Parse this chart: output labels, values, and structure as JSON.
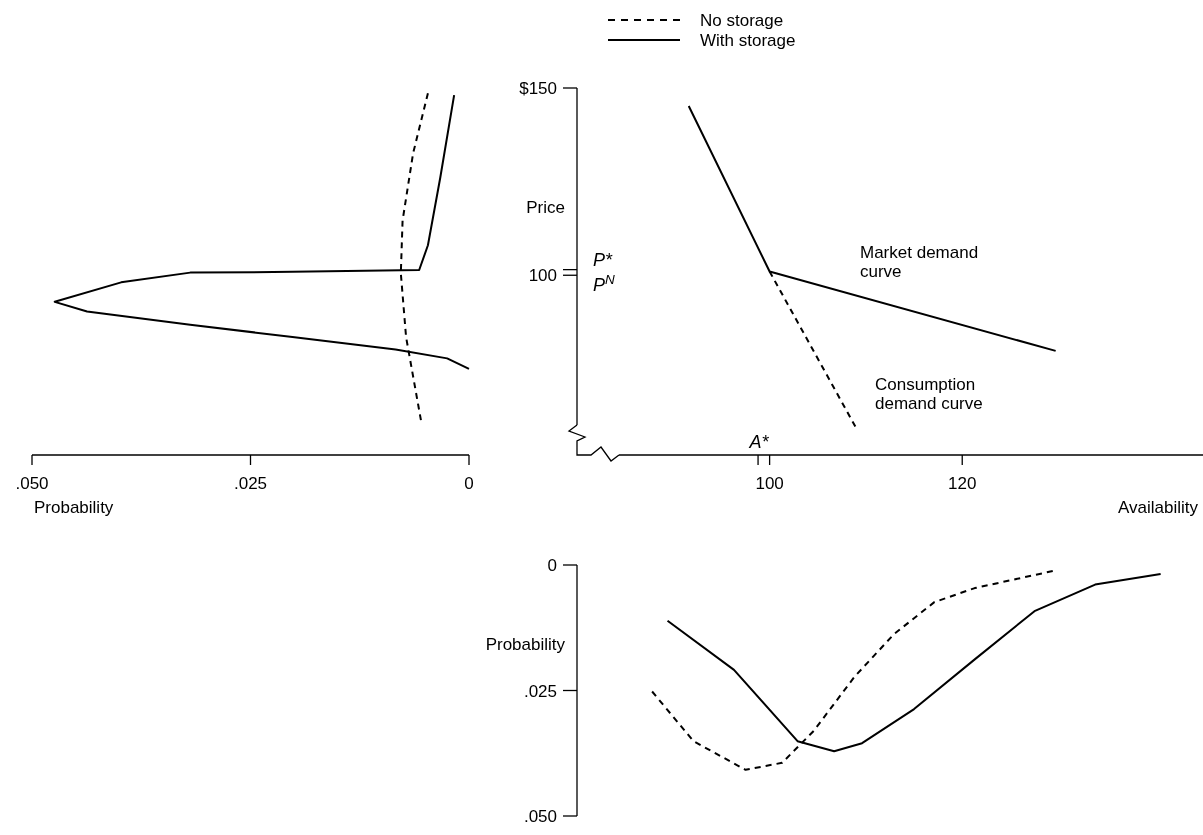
{
  "chart_data": [
    {
      "type": "line",
      "xlabel": "Probability",
      "xlim": [
        0.05,
        0
      ],
      "ylim": [
        52,
        150
      ],
      "xticks": [
        {
          "value": 0.05,
          "label": ".050"
        },
        {
          "value": 0.025,
          "label": ".025"
        },
        0
      ],
      "tick_labels": "x",
      "legend": "top right",
      "series": [
        {
          "name": "No storage",
          "color": "#000000",
          "line_style": "dashed",
          "x": [
            0.0047,
            0.0064,
            0.0076,
            0.0078,
            0.0072,
            0.0055
          ],
          "values": [
            148.6,
            132.5,
            114.6,
            100.5,
            83.5,
            61.3
          ]
        },
        {
          "name": "With storage",
          "color": "#000000",
          "line_style": "solid",
          "x": [
            0.0017,
            0.0033,
            0.0047,
            0.0057,
            0.0202,
            0.0319,
            0.0398,
            0.0474,
            0.0437,
            0.0319,
            0.0202,
            0.0084,
            0.0025,
            0
          ],
          "values": [
            148.1,
            125.9,
            108,
            101.4,
            100.9,
            100.7,
            98.1,
            92.9,
            90.3,
            86.8,
            83.5,
            80.2,
            77.8,
            75
          ]
        }
      ]
    },
    {
      "type": "line",
      "xlabel": "Availability",
      "ylabel": "Price",
      "xlim": [
        80,
        145
      ],
      "ylim": [
        52,
        150
      ],
      "xticks": [
        {
          "value": 98.8,
          "label": null
        },
        100,
        120
      ],
      "yticks": [
        {
          "value": 150,
          "label": "$150"
        },
        {
          "value": 101.5,
          "label": null
        },
        100
      ],
      "annotations": [
        "P*",
        "P$^{N}$",
        "A*"
      ],
      "series": [
        {
          "name": "Market demand curve",
          "color": "#000000",
          "line_style": "solid",
          "x": [
            91.6,
            100,
            129.7
          ],
          "values": [
            145.2,
            101,
            79.8
          ]
        },
        {
          "name": "Consumption demand curve",
          "color": "#000000",
          "line_style": "dashed",
          "x": [
            100,
            108.9
          ],
          "values": [
            101,
            59.6
          ]
        }
      ]
    },
    {
      "type": "line",
      "ylabel": "Probability",
      "xlim": [
        80,
        145
      ],
      "ylim": [
        0.05,
        0
      ],
      "yticks": [
        0,
        {
          "value": 0.025,
          "label": ".025"
        },
        {
          "value": 0.05,
          "label": ".050"
        }
      ],
      "tick_labels": "y",
      "series": [
        {
          "color": "#000000",
          "line_style": "dashed",
          "x": [
            87.8,
            92.1,
            97.5,
            101.3,
            104.6,
            108.8,
            112.9,
            117.1,
            121.3,
            129.4
          ],
          "values": [
            0.0252,
            0.0351,
            0.0408,
            0.0394,
            0.033,
            0.0223,
            0.0138,
            0.0074,
            0.0046,
            0.0012
          ]
        },
        {
          "color": "#000000",
          "line_style": "solid",
          "x": [
            89.4,
            96.3,
            102.9,
            106.7,
            109.6,
            115,
            121.3,
            127.5,
            133.8,
            140.6
          ],
          "values": [
            0.0111,
            0.0209,
            0.0351,
            0.0371,
            0.0355,
            0.0287,
            0.0188,
            0.0092,
            0.0039,
            0.0018
          ]
        }
      ]
    }
  ]
}
